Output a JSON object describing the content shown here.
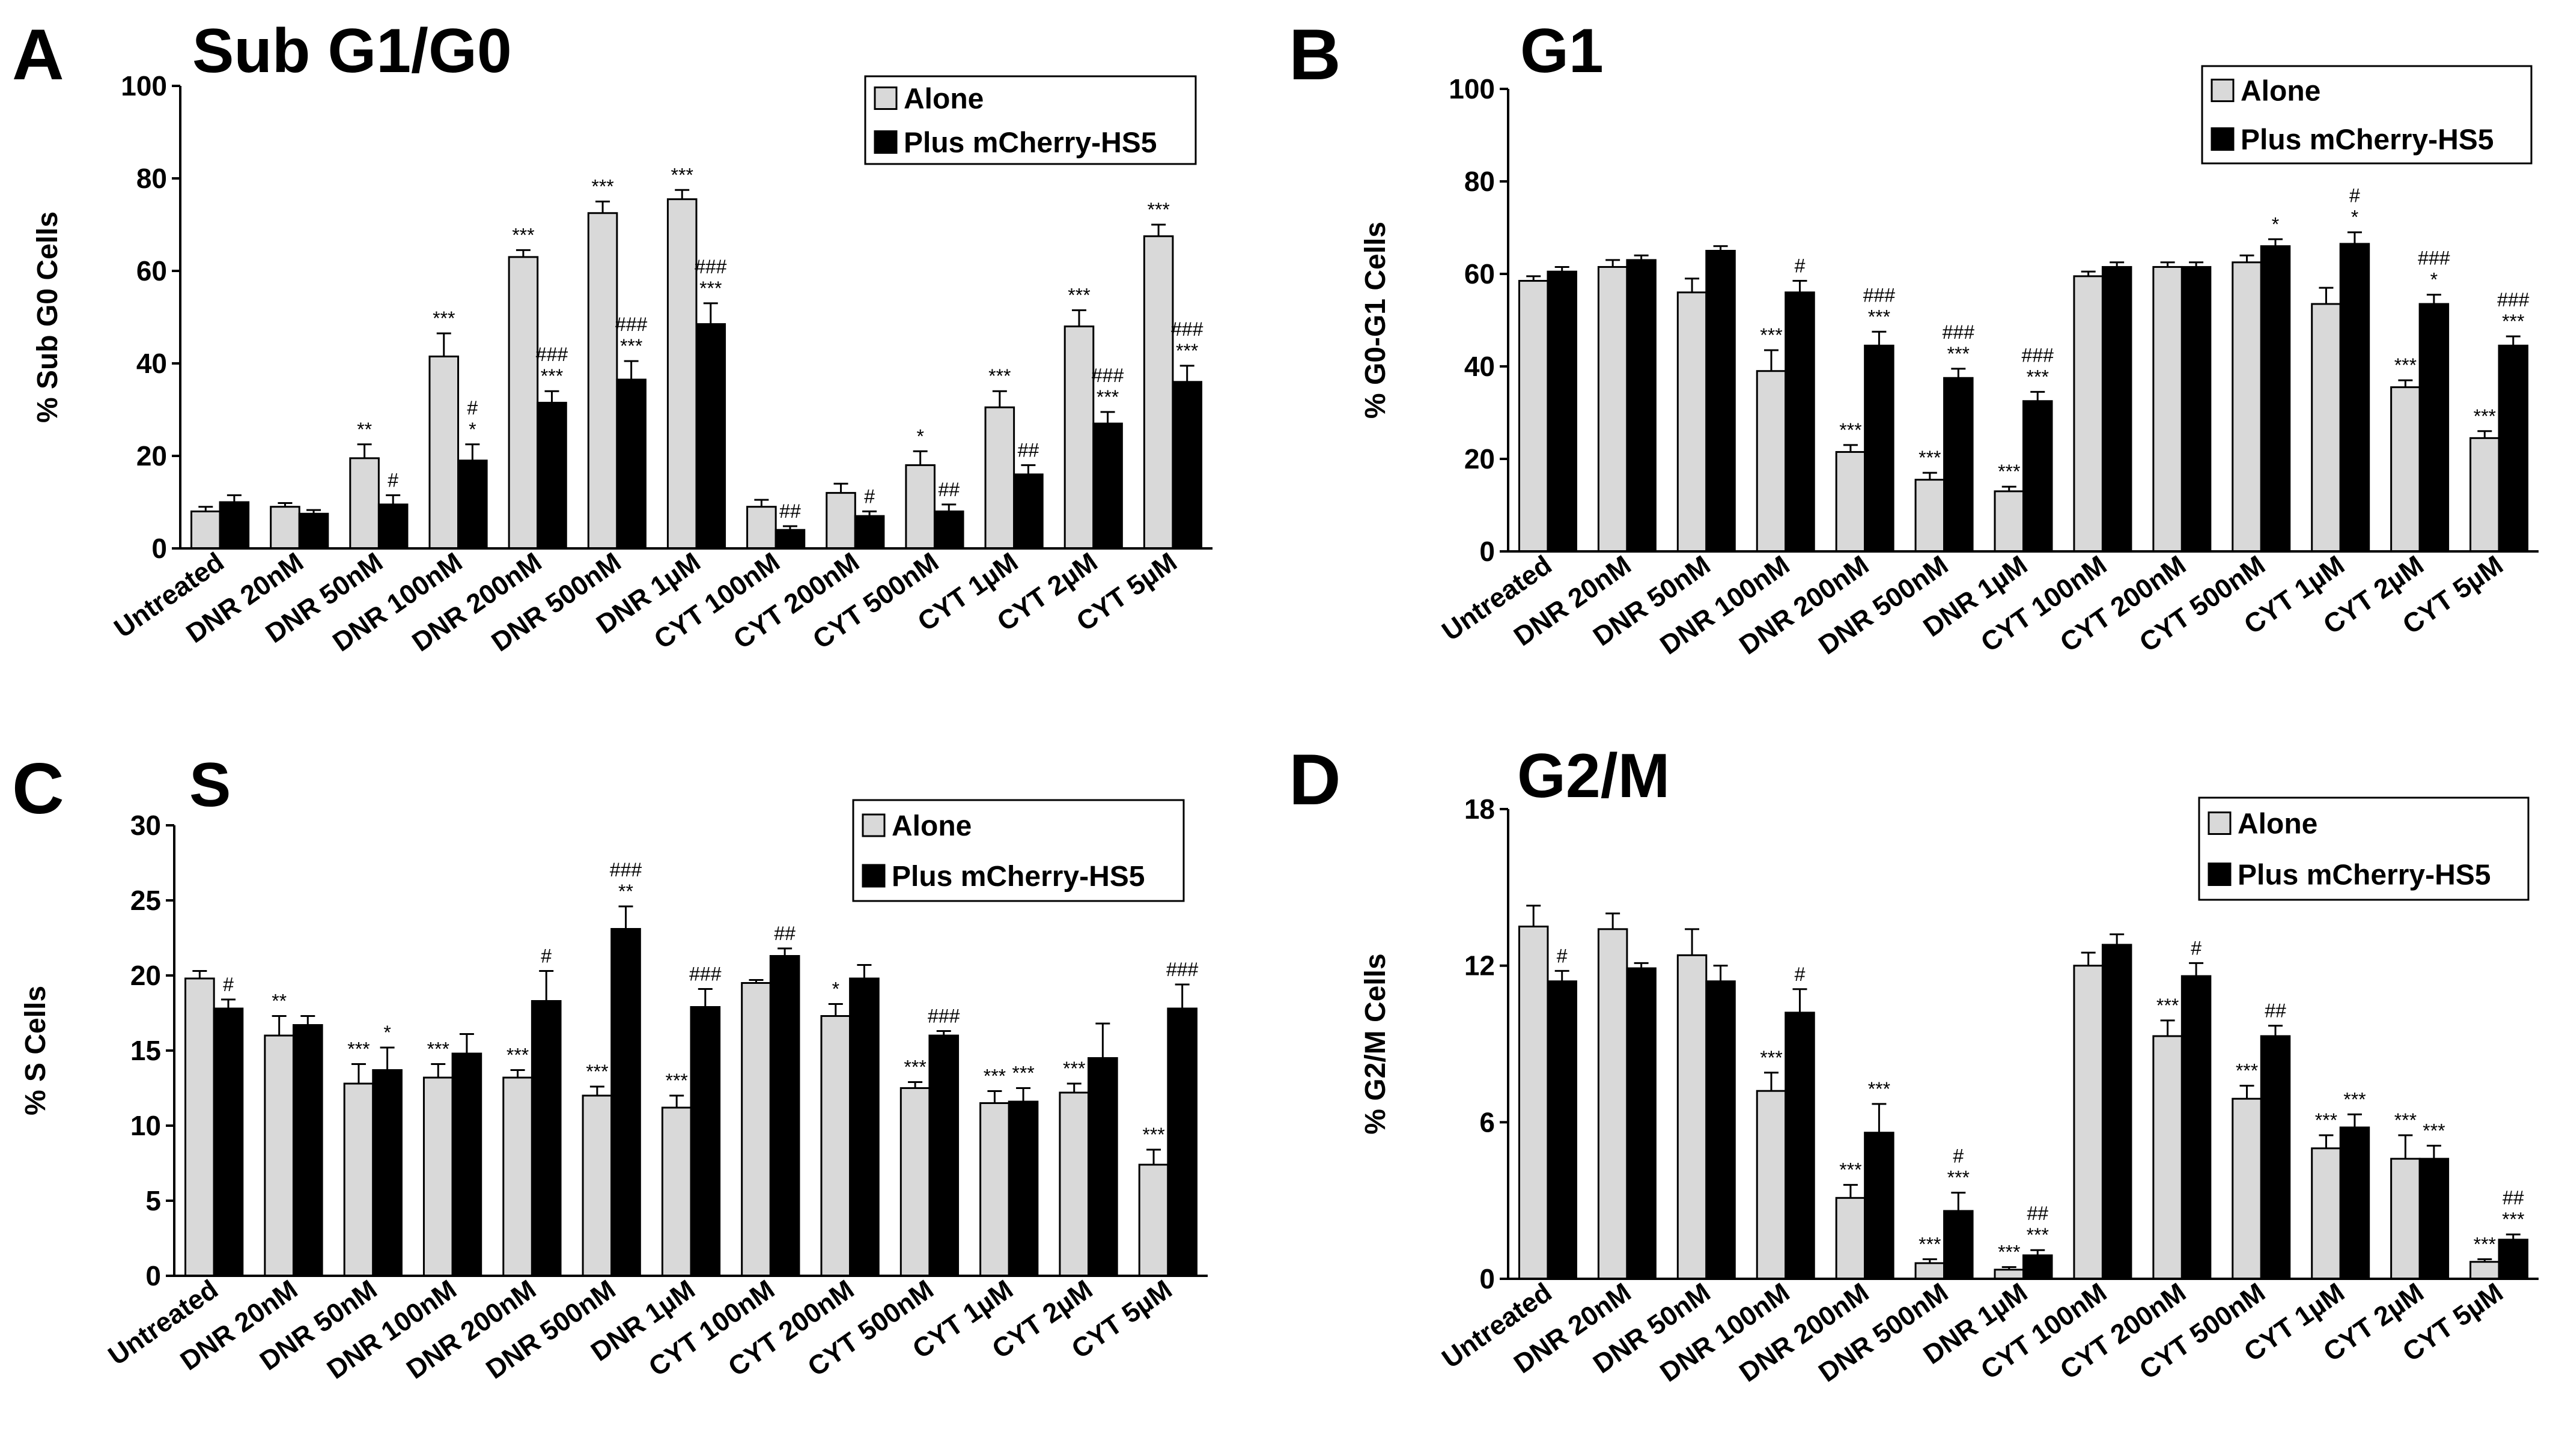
{
  "colors": {
    "alone": "#d9d9d9",
    "plus": "#000000",
    "outline": "#000000"
  },
  "legend": {
    "alone": "Alone",
    "plus": "Plus mCherry-HS5"
  },
  "categories": [
    "Untreated",
    "DNR 20nM",
    "DNR 50nM",
    "DNR 100nM",
    "DNR 200nM",
    "DNR 500nM",
    "DNR 1µM",
    "CYT 100nM",
    "CYT 200nM",
    "CYT 500nM",
    "CYT 1µM",
    "CYT 2µM",
    "CYT 5µM"
  ],
  "chart_data": [
    {
      "type": "bar",
      "panel": "A",
      "title": "Sub G1/G0",
      "ylabel": "% Sub G0 Cells",
      "ylim": [
        0,
        100
      ],
      "yticks": [
        0,
        20,
        40,
        60,
        80,
        100
      ],
      "legend_position": "top-right",
      "series": [
        {
          "name": "Alone",
          "values": [
            8,
            9,
            19.5,
            41.5,
            63,
            72.5,
            75.5,
            9,
            12,
            18,
            30.5,
            48,
            67.5
          ],
          "errors": [
            1,
            0.8,
            3,
            5,
            1.5,
            2.5,
            2,
            1.5,
            2,
            3,
            3.5,
            3.5,
            2.5
          ],
          "sig": [
            "",
            "",
            "**",
            "***",
            "***",
            "***",
            "***",
            "",
            "",
            "*",
            "***",
            "***",
            "***"
          ]
        },
        {
          "name": "Plus mCherry-HS5",
          "values": [
            10,
            7.5,
            9.5,
            19,
            31.5,
            36.5,
            48.5,
            4,
            7,
            8,
            16,
            27,
            36
          ],
          "errors": [
            1.5,
            0.8,
            2,
            3.5,
            2.5,
            4,
            4.5,
            0.8,
            1,
            1.5,
            2,
            2.5,
            3.5
          ],
          "sig": [
            "",
            "",
            "#",
            "#\n*",
            "###\n***",
            "###\n***",
            "###\n***",
            "##",
            "#",
            "##",
            "##",
            "###\n***",
            "###\n***"
          ]
        }
      ]
    },
    {
      "type": "bar",
      "panel": "B",
      "title": "G1",
      "ylabel": "% G0-G1 Cells",
      "ylim": [
        0,
        100
      ],
      "yticks": [
        0,
        20,
        40,
        60,
        80,
        100
      ],
      "legend_position": "top-right",
      "series": [
        {
          "name": "Alone",
          "values": [
            58.5,
            61.5,
            56,
            39,
            21.5,
            15.5,
            13,
            59.5,
            61.5,
            62.5,
            53.5,
            35.5,
            24.5
          ],
          "errors": [
            1,
            1.5,
            3,
            4.5,
            1.5,
            1.5,
            1,
            1,
            1,
            1.5,
            3.5,
            1.5,
            1.5
          ],
          "sig": [
            "",
            "",
            "",
            "***",
            "***",
            "***",
            "***",
            "",
            "",
            "",
            "",
            "***",
            "***"
          ]
        },
        {
          "name": "Plus mCherry-HS5",
          "values": [
            60.5,
            63,
            65,
            56,
            44.5,
            37.5,
            32.5,
            61.5,
            61.5,
            66,
            66.5,
            53.5,
            44.5
          ],
          "errors": [
            1,
            1,
            1,
            2.5,
            3,
            2,
            2,
            1,
            1,
            1.5,
            2.5,
            2,
            2
          ],
          "sig": [
            "",
            "",
            "",
            "#",
            "###\n***",
            "###\n***",
            "###\n***",
            "",
            "",
            "*",
            "#\n*",
            "###\n*",
            "###\n***"
          ]
        }
      ]
    },
    {
      "type": "bar",
      "panel": "C",
      "title": "S",
      "ylabel": "% S Cells",
      "ylim": [
        0,
        30
      ],
      "yticks": [
        0,
        5,
        10,
        15,
        20,
        25,
        30
      ],
      "legend_position": "top-right",
      "series": [
        {
          "name": "Alone",
          "values": [
            19.8,
            16,
            12.8,
            13.2,
            13.2,
            12,
            11.2,
            19.5,
            17.3,
            12.5,
            11.5,
            12.2,
            7.4
          ],
          "errors": [
            0.5,
            1.3,
            1.3,
            0.9,
            0.5,
            0.6,
            0.8,
            0.2,
            0.8,
            0.4,
            0.8,
            0.6,
            1
          ],
          "sig": [
            "",
            "**",
            "***",
            "***",
            "***",
            "***",
            "***",
            "",
            "*",
            "***",
            "***",
            "***",
            "***"
          ]
        },
        {
          "name": "Plus mCherry-HS5",
          "values": [
            17.8,
            16.7,
            13.7,
            14.8,
            18.3,
            23.1,
            17.9,
            21.3,
            19.8,
            16,
            11.6,
            14.5,
            17.8
          ],
          "errors": [
            0.6,
            0.6,
            1.5,
            1.3,
            2,
            1.5,
            1.2,
            0.5,
            0.9,
            0.3,
            0.9,
            2.3,
            1.6
          ],
          "sig": [
            "#",
            "",
            "*",
            "",
            "#",
            "###\n**",
            "###",
            "##",
            "",
            "###",
            "***",
            "",
            "###"
          ]
        }
      ]
    },
    {
      "type": "bar",
      "panel": "D",
      "title": "G2/M",
      "ylabel": "% G2/M Cells",
      "ylim": [
        0,
        18
      ],
      "yticks": [
        0,
        6,
        12,
        18
      ],
      "legend_position": "top-right",
      "series": [
        {
          "name": "Alone",
          "values": [
            13.5,
            13.4,
            12.4,
            7.2,
            3.1,
            0.6,
            0.35,
            12,
            9.3,
            6.9,
            5,
            4.6,
            0.65
          ],
          "errors": [
            0.8,
            0.6,
            1,
            0.7,
            0.5,
            0.15,
            0.1,
            0.5,
            0.6,
            0.5,
            0.5,
            0.9,
            0.1
          ],
          "sig": [
            "",
            "",
            "",
            "***",
            "***",
            "***",
            "***",
            "",
            "***",
            "***",
            "***",
            "***",
            "***"
          ]
        },
        {
          "name": "Plus mCherry-HS5",
          "values": [
            11.4,
            11.9,
            11.4,
            10.2,
            5.6,
            2.6,
            0.9,
            12.8,
            11.6,
            9.3,
            5.8,
            4.6,
            1.5
          ],
          "errors": [
            0.4,
            0.2,
            0.6,
            0.9,
            1.1,
            0.7,
            0.2,
            0.4,
            0.5,
            0.4,
            0.5,
            0.5,
            0.2
          ],
          "sig": [
            "#",
            "",
            "",
            "#",
            "***",
            "#\n***",
            "##\n***",
            "",
            "#",
            "##",
            "***",
            "***",
            "##\n***"
          ]
        }
      ]
    }
  ]
}
